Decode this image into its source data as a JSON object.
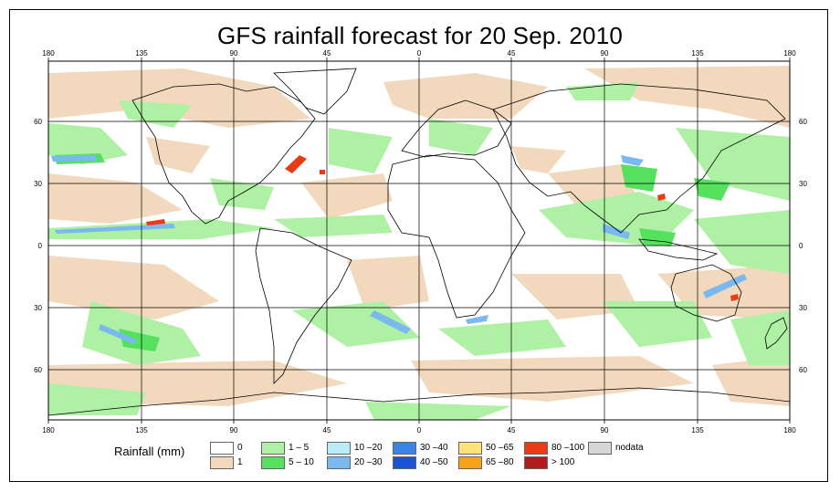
{
  "title": "GFS rainfall forecast for 20 Sep. 2010",
  "axes": {
    "top_lon_labels": [
      "180",
      "135",
      "90",
      "45",
      "0",
      "45",
      "90",
      "135",
      "180"
    ],
    "bottom_lon_labels": [
      "180",
      "135",
      "90",
      "45",
      "0",
      "45",
      "90",
      "135",
      "180"
    ],
    "left_lat_labels": [
      "60",
      "30",
      "0",
      "30",
      "60"
    ],
    "right_lat_labels": [
      "60",
      "30",
      "0",
      "30",
      "60"
    ]
  },
  "legend": {
    "title": "Rainfall (mm)",
    "items": [
      {
        "label": "0",
        "color": "#ffffff"
      },
      {
        "label": "1",
        "color": "#f2d9bd"
      },
      {
        "label": "1 – 5",
        "color": "#aef0a4"
      },
      {
        "label": "5 – 10",
        "color": "#55e05e"
      },
      {
        "label": "10 –20",
        "color": "#b8ecf6"
      },
      {
        "label": "20 –30",
        "color": "#7ab8f0"
      },
      {
        "label": "30 –40",
        "color": "#3a84e8"
      },
      {
        "label": "40 –50",
        "color": "#1c52d4"
      },
      {
        "label": "50 –65",
        "color": "#ffe27a"
      },
      {
        "label": "65 –80",
        "color": "#f8a21a"
      },
      {
        "label": "80 –100",
        "color": "#ec3a14"
      },
      {
        "label": "> 100",
        "color": "#b01c1c"
      },
      {
        "label": "nodata",
        "color": "#d6d6d6"
      }
    ]
  },
  "colors": {
    "ocean_dry": "#ffffff",
    "light_rain": "#f2d9bd",
    "moderate_rain": "#aef0a4",
    "heavy_rain": "#55e05e",
    "very_heavy": "#7ab8f0",
    "extreme": "#ec3a14",
    "gridline": "#000000"
  }
}
